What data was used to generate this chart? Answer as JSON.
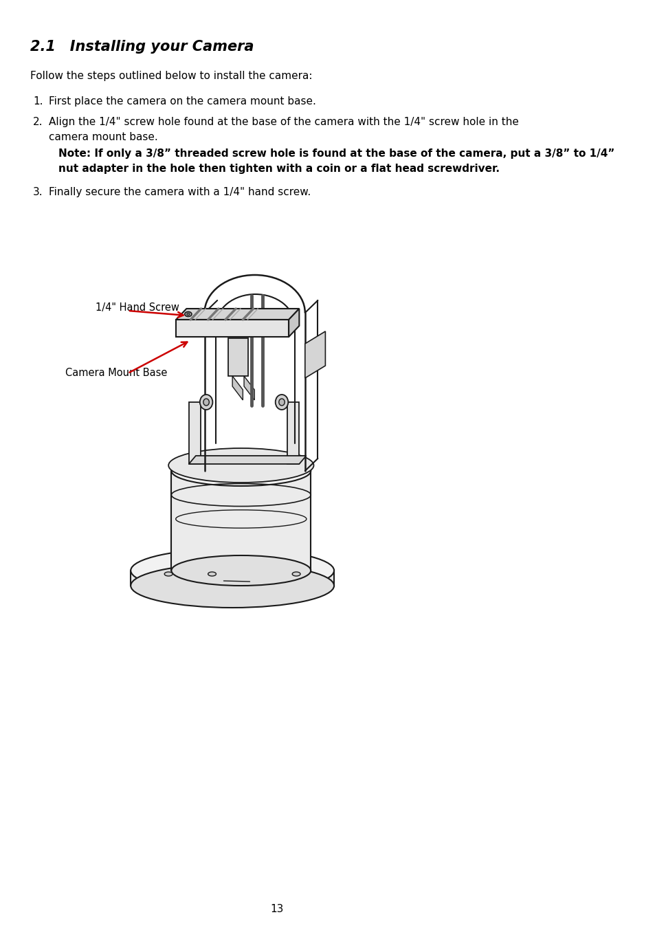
{
  "title": "2.1 Installing your Camera",
  "title_fontsize": 15,
  "title_bold": true,
  "title_italic": true,
  "body_fontsize": 11,
  "note_fontsize": 11,
  "page_number": "13",
  "background_color": "#ffffff",
  "text_color": "#000000",
  "intro_text": "Follow the steps outlined below to install the camera:",
  "step1": "First place the camera on the camera mount base.",
  "step2_line1": "Align the 1/4\" screw hole found at the base of the camera with the 1/4\" screw hole in the",
  "step2_line2": "camera mount base.",
  "step2_note1": "Note: If only a 3/8” threaded screw hole is found at the base of the camera, put a 3/8” to 1/4”",
  "step2_note2": "nut adapter in the hole then tighten with a coin or a flat head screwdriver.",
  "step3": "Finally secure the camera with a 1/4\" hand screw.",
  "label_hand_screw": "1/4\" Hand Screw",
  "label_camera_mount": "Camera Mount Base",
  "arrow_color": "#cc0000",
  "label_fontsize": 10.5,
  "line_color": "#1a1a1a",
  "fill_light": "#f2f2f2",
  "fill_medium": "#d8d8d8",
  "fill_dark": "#b0b0b0"
}
